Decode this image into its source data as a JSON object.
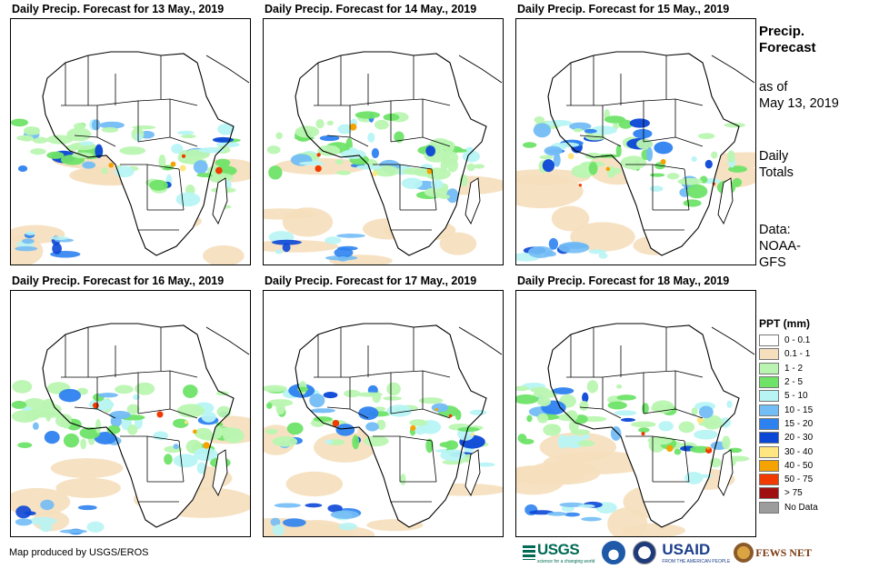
{
  "panels": [
    {
      "title": "Daily Precip. Forecast for 13 May., 2019"
    },
    {
      "title": "Daily Precip. Forecast for 14 May., 2019"
    },
    {
      "title": "Daily Precip. Forecast for 15 May., 2019"
    },
    {
      "title": "Daily Precip. Forecast for 16 May., 2019"
    },
    {
      "title": "Daily Precip. Forecast for 17 May., 2019"
    },
    {
      "title": "Daily Precip. Forecast for 18 May., 2019"
    }
  ],
  "side": {
    "title_line1": "Precip.",
    "title_line2": "Forecast",
    "asof_line1": "as of",
    "asof_line2": "May 13, 2019",
    "totals_line1": "Daily",
    "totals_line2": "Totals",
    "data_line1": "Data:",
    "data_line2": "NOAA-",
    "data_line3": "GFS"
  },
  "legend": {
    "title": "PPT (mm)",
    "items": [
      {
        "label": "0 - 0.1",
        "color": "#ffffff"
      },
      {
        "label": "0.1 - 1",
        "color": "#f5dfbd"
      },
      {
        "label": "1 - 2",
        "color": "#b9f5b1"
      },
      {
        "label": "2 - 5",
        "color": "#6fe368"
      },
      {
        "label": "5 - 10",
        "color": "#b8f4f4"
      },
      {
        "label": "10 - 15",
        "color": "#73bdf5"
      },
      {
        "label": "15 - 20",
        "color": "#2e82f0"
      },
      {
        "label": "20 - 30",
        "color": "#0b47d6"
      },
      {
        "label": "30 - 40",
        "color": "#ffe680"
      },
      {
        "label": "40 - 50",
        "color": "#f5a300"
      },
      {
        "label": "50 - 75",
        "color": "#f03a00"
      },
      {
        "label": "> 75",
        "color": "#a01010"
      },
      {
        "label": "No Data",
        "color": "#9c9c9c"
      }
    ]
  },
  "credit": "Map produced by USGS/EROS",
  "logos": {
    "usgs": "USGS",
    "usgs_tagline": "science for a changing world",
    "usaid": "USAID",
    "usaid_tagline": "FROM THE AMERICAN PEOPLE",
    "fews": "FEWS NET"
  }
}
